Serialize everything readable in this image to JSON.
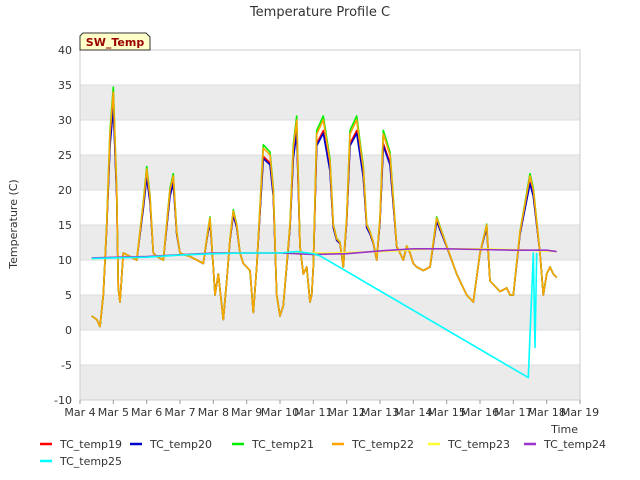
{
  "chart_data": {
    "type": "line",
    "title": "Temperature Profile C",
    "xlabel": "Time",
    "ylabel": "Temperature (C)",
    "xlim": [
      4,
      19
    ],
    "ylim": [
      -10,
      40
    ],
    "x_ticks": [
      {
        "v": 4,
        "label": "Mar 4"
      },
      {
        "v": 5,
        "label": "Mar 5"
      },
      {
        "v": 6,
        "label": "Mar 6"
      },
      {
        "v": 7,
        "label": "Mar 7"
      },
      {
        "v": 8,
        "label": "Mar 8"
      },
      {
        "v": 9,
        "label": "Mar 9"
      },
      {
        "v": 10,
        "label": "Mar 10"
      },
      {
        "v": 11,
        "label": "Mar 11"
      },
      {
        "v": 12,
        "label": "Mar 12"
      },
      {
        "v": 13,
        "label": "Mar 13"
      },
      {
        "v": 14,
        "label": "Mar 14"
      },
      {
        "v": 15,
        "label": "Mar 15"
      },
      {
        "v": 16,
        "label": "Mar 16"
      },
      {
        "v": 17,
        "label": "Mar 17"
      },
      {
        "v": 18,
        "label": "Mar 18"
      },
      {
        "v": 19,
        "label": "Mar 19"
      }
    ],
    "y_ticks": [
      -10,
      -5,
      0,
      5,
      10,
      15,
      20,
      25,
      30,
      35,
      40
    ],
    "grid": "horizontal-bands",
    "legend_position": "bottom",
    "annotation": "SW_Temp",
    "series": [
      {
        "name": "TC_temp19",
        "color": "#ff0000",
        "scale": 0.92,
        "x": [
          4.35,
          4.5,
          4.6,
          4.7,
          4.8,
          4.9,
          5.0,
          5.1,
          5.15,
          5.2,
          5.3,
          5.5,
          5.7,
          5.9,
          6.0,
          6.1,
          6.2,
          6.3,
          6.5,
          6.7,
          6.8,
          6.9,
          7.0,
          7.1,
          7.3,
          7.5,
          7.7,
          7.8,
          7.9,
          8.0,
          8.05,
          8.15,
          8.3,
          8.4,
          8.5,
          8.6,
          8.7,
          8.8,
          8.9,
          9.0,
          9.1,
          9.2,
          9.3,
          9.5,
          9.7,
          9.8,
          9.9,
          10.0,
          10.1,
          10.3,
          10.4,
          10.5,
          10.6,
          10.7,
          10.8,
          10.9,
          10.95,
          11.0,
          11.1,
          11.3,
          11.5,
          11.6,
          11.7,
          11.8,
          11.9,
          12.0,
          12.1,
          12.3,
          12.5,
          12.6,
          12.7,
          12.8,
          12.9,
          13.0,
          13.1,
          13.3,
          13.5,
          13.6,
          13.7,
          13.8,
          13.9,
          14.0,
          14.1,
          14.3,
          14.5,
          14.7,
          15.0,
          15.3,
          15.5,
          15.6,
          15.8,
          16.0,
          16.2,
          16.3,
          16.5,
          16.6,
          16.8,
          16.9,
          17.0,
          17.2,
          17.5,
          17.6,
          17.8,
          17.9,
          18.0,
          18.1,
          18.2,
          18.3
        ],
        "y": [
          2.0,
          1.5,
          0.5,
          5.0,
          15.0,
          28.0,
          34.0,
          20.0,
          6.0,
          4.0,
          11.0,
          10.5,
          10.0,
          18.0,
          23.0,
          19.0,
          11.0,
          10.5,
          10.0,
          20.0,
          22.0,
          14.0,
          11.0,
          10.8,
          10.5,
          10.0,
          9.5,
          13.0,
          16.0,
          9.0,
          5.0,
          8.0,
          1.5,
          7.0,
          13.0,
          17.0,
          15.0,
          11.0,
          9.5,
          9.0,
          8.5,
          2.5,
          9.0,
          26.0,
          25.0,
          20.0,
          5.0,
          2.0,
          3.5,
          15.0,
          26.0,
          30.0,
          12.0,
          8.0,
          9.0,
          4.0,
          5.0,
          9.0,
          28.0,
          30.0,
          24.0,
          15.0,
          13.0,
          12.5,
          9.0,
          16.0,
          28.0,
          30.0,
          23.0,
          15.0,
          14.0,
          12.5,
          10.0,
          16.0,
          28.0,
          25.0,
          12.0,
          11.0,
          10.0,
          12.0,
          11.0,
          9.5,
          9.0,
          8.5,
          9.0,
          16.0,
          12.0,
          8.0,
          6.0,
          5.0,
          4.0,
          11.0,
          15.0,
          7.0,
          6.0,
          5.5,
          6.0,
          5.0,
          5.0,
          14.0,
          22.0,
          20.0,
          11.0,
          5.0,
          8.0,
          9.0,
          8.0,
          7.5
        ]
      },
      {
        "name": "TC_temp20",
        "color": "#0000cc",
        "scale": 0.9,
        "x": [
          4.35,
          4.5,
          4.6,
          4.7,
          4.8,
          4.9,
          5.0,
          5.1,
          5.15,
          5.2,
          5.3,
          5.5,
          5.7,
          5.9,
          6.0,
          6.1,
          6.2,
          6.3,
          6.5,
          6.7,
          6.8,
          6.9,
          7.0,
          7.1,
          7.3,
          7.5,
          7.7,
          7.8,
          7.9,
          8.0,
          8.05,
          8.15,
          8.3,
          8.4,
          8.5,
          8.6,
          8.7,
          8.8,
          8.9,
          9.0,
          9.1,
          9.2,
          9.3,
          9.5,
          9.7,
          9.8,
          9.9,
          10.0,
          10.1,
          10.3,
          10.4,
          10.5,
          10.6,
          10.7,
          10.8,
          10.9,
          10.95,
          11.0,
          11.1,
          11.3,
          11.5,
          11.6,
          11.7,
          11.8,
          11.9,
          12.0,
          12.1,
          12.3,
          12.5,
          12.6,
          12.7,
          12.8,
          12.9,
          13.0,
          13.1,
          13.3,
          13.5,
          13.6,
          13.7,
          13.8,
          13.9,
          14.0,
          14.1,
          14.3,
          14.5,
          14.7,
          15.0,
          15.3,
          15.5,
          15.6,
          15.8,
          16.0,
          16.2,
          16.3,
          16.5,
          16.6,
          16.8,
          16.9,
          17.0,
          17.2,
          17.5,
          17.6,
          17.8,
          17.9,
          18.0,
          18.1,
          18.2,
          18.3
        ],
        "y": [
          2.0,
          1.5,
          0.5,
          5.0,
          15.0,
          28.0,
          34.0,
          20.0,
          6.0,
          4.0,
          11.0,
          10.5,
          10.0,
          18.0,
          23.0,
          19.0,
          11.0,
          10.5,
          10.0,
          20.0,
          22.0,
          14.0,
          11.0,
          10.8,
          10.5,
          10.0,
          9.5,
          13.0,
          16.0,
          9.0,
          5.0,
          8.0,
          1.5,
          7.0,
          13.0,
          17.0,
          15.0,
          11.0,
          9.5,
          9.0,
          8.5,
          2.5,
          9.0,
          26.0,
          25.0,
          20.0,
          5.0,
          2.0,
          3.5,
          15.0,
          26.0,
          30.0,
          12.0,
          8.0,
          9.0,
          4.0,
          5.0,
          9.0,
          28.0,
          30.0,
          24.0,
          15.0,
          13.0,
          12.5,
          9.0,
          16.0,
          28.0,
          30.0,
          23.0,
          15.0,
          14.0,
          12.5,
          10.0,
          16.0,
          28.0,
          25.0,
          12.0,
          11.0,
          10.0,
          12.0,
          11.0,
          9.5,
          9.0,
          8.5,
          9.0,
          16.0,
          12.0,
          8.0,
          6.0,
          5.0,
          4.0,
          11.0,
          15.0,
          7.0,
          6.0,
          5.5,
          6.0,
          5.0,
          5.0,
          14.0,
          22.0,
          20.0,
          11.0,
          5.0,
          8.0,
          9.0,
          8.0,
          7.5
        ]
      },
      {
        "name": "TC_temp21",
        "color": "#00ee00",
        "scale": 1.03,
        "x": [
          4.35,
          4.5,
          4.6,
          4.7,
          4.8,
          4.9,
          5.0,
          5.1,
          5.15,
          5.2,
          5.3,
          5.5,
          5.7,
          5.9,
          6.0,
          6.1,
          6.2,
          6.3,
          6.5,
          6.7,
          6.8,
          6.9,
          7.0,
          7.1,
          7.3,
          7.5,
          7.7,
          7.8,
          7.9,
          8.0,
          8.05,
          8.15,
          8.3,
          8.4,
          8.5,
          8.6,
          8.7,
          8.8,
          8.9,
          9.0,
          9.1,
          9.2,
          9.3,
          9.5,
          9.7,
          9.8,
          9.9,
          10.0,
          10.1,
          10.3,
          10.4,
          10.5,
          10.6,
          10.7,
          10.8,
          10.9,
          10.95,
          11.0,
          11.1,
          11.3,
          11.5,
          11.6,
          11.7,
          11.8,
          11.9,
          12.0,
          12.1,
          12.3,
          12.5,
          12.6,
          12.7,
          12.8,
          12.9,
          13.0,
          13.1,
          13.3,
          13.5,
          13.6,
          13.7,
          13.8,
          13.9,
          14.0,
          14.1,
          14.3,
          14.5,
          14.7,
          15.0,
          15.3,
          15.5,
          15.6,
          15.8,
          16.0,
          16.2,
          16.3,
          16.5,
          16.6,
          16.8,
          16.9,
          17.0,
          17.2,
          17.5,
          17.6,
          17.8,
          17.9,
          18.0,
          18.1,
          18.2,
          18.3
        ],
        "y": [
          2.0,
          1.5,
          0.5,
          5.0,
          15.0,
          28.0,
          34.0,
          20.0,
          6.0,
          4.0,
          11.0,
          10.5,
          10.0,
          18.0,
          23.0,
          19.0,
          11.0,
          10.5,
          10.0,
          20.0,
          22.0,
          14.0,
          11.0,
          10.8,
          10.5,
          10.0,
          9.5,
          13.0,
          16.0,
          9.0,
          5.0,
          8.0,
          1.5,
          7.0,
          13.0,
          17.0,
          15.0,
          11.0,
          9.5,
          9.0,
          8.5,
          2.5,
          9.0,
          26.0,
          25.0,
          20.0,
          5.0,
          2.0,
          3.5,
          15.0,
          26.0,
          30.0,
          12.0,
          8.0,
          9.0,
          4.0,
          5.0,
          9.0,
          28.0,
          30.0,
          24.0,
          15.0,
          13.0,
          12.5,
          9.0,
          16.0,
          28.0,
          30.0,
          23.0,
          15.0,
          14.0,
          12.5,
          10.0,
          16.0,
          28.0,
          25.0,
          12.0,
          11.0,
          10.0,
          12.0,
          11.0,
          9.5,
          9.0,
          8.5,
          9.0,
          16.0,
          12.0,
          8.0,
          6.0,
          5.0,
          4.0,
          11.0,
          15.0,
          7.0,
          6.0,
          5.5,
          6.0,
          5.0,
          5.0,
          14.0,
          22.0,
          20.0,
          11.0,
          5.0,
          8.0,
          9.0,
          8.0,
          7.5
        ]
      },
      {
        "name": "TC_temp22",
        "color": "#ffa500",
        "scale": 1.0,
        "x": [
          4.35,
          4.5,
          4.6,
          4.7,
          4.8,
          4.9,
          5.0,
          5.1,
          5.15,
          5.2,
          5.3,
          5.5,
          5.7,
          5.9,
          6.0,
          6.1,
          6.2,
          6.3,
          6.5,
          6.7,
          6.8,
          6.9,
          7.0,
          7.1,
          7.3,
          7.5,
          7.7,
          7.8,
          7.9,
          8.0,
          8.05,
          8.15,
          8.3,
          8.4,
          8.5,
          8.6,
          8.7,
          8.8,
          8.9,
          9.0,
          9.1,
          9.2,
          9.3,
          9.5,
          9.7,
          9.8,
          9.9,
          10.0,
          10.1,
          10.3,
          10.4,
          10.5,
          10.6,
          10.7,
          10.8,
          10.9,
          10.95,
          11.0,
          11.1,
          11.3,
          11.5,
          11.6,
          11.7,
          11.8,
          11.9,
          12.0,
          12.1,
          12.3,
          12.5,
          12.6,
          12.7,
          12.8,
          12.9,
          13.0,
          13.1,
          13.3,
          13.5,
          13.6,
          13.7,
          13.8,
          13.9,
          14.0,
          14.1,
          14.3,
          14.5,
          14.7,
          15.0,
          15.3,
          15.5,
          15.6,
          15.8,
          16.0,
          16.2,
          16.3,
          16.5,
          16.6,
          16.8,
          16.9,
          17.0,
          17.2,
          17.5,
          17.6,
          17.8,
          17.9,
          18.0,
          18.1,
          18.2,
          18.3
        ],
        "y": [
          2.0,
          1.5,
          0.5,
          5.0,
          15.0,
          28.0,
          34.0,
          20.0,
          6.0,
          4.0,
          11.0,
          10.5,
          10.0,
          18.0,
          23.0,
          19.0,
          11.0,
          10.5,
          10.0,
          20.0,
          22.0,
          14.0,
          11.0,
          10.8,
          10.5,
          10.0,
          9.5,
          13.0,
          16.0,
          9.0,
          5.0,
          8.0,
          1.5,
          7.0,
          13.0,
          17.0,
          15.0,
          11.0,
          9.5,
          9.0,
          8.5,
          2.5,
          9.0,
          26.0,
          25.0,
          20.0,
          5.0,
          2.0,
          3.5,
          15.0,
          26.0,
          30.0,
          12.0,
          8.0,
          9.0,
          4.0,
          5.0,
          9.0,
          28.0,
          30.0,
          24.0,
          15.0,
          13.0,
          12.5,
          9.0,
          16.0,
          28.0,
          30.0,
          23.0,
          15.0,
          14.0,
          12.5,
          10.0,
          16.0,
          28.0,
          25.0,
          12.0,
          11.0,
          10.0,
          12.0,
          11.0,
          9.5,
          9.0,
          8.5,
          9.0,
          16.0,
          12.0,
          8.0,
          6.0,
          5.0,
          4.0,
          11.0,
          15.0,
          7.0,
          6.0,
          5.5,
          6.0,
          5.0,
          5.0,
          14.0,
          22.0,
          20.0,
          11.0,
          5.0,
          8.0,
          9.0,
          8.0,
          7.5
        ]
      },
      {
        "name": "TC_temp23",
        "color": "#ffff33",
        "scale": 1.0,
        "x": [
          4.35,
          6.0,
          8.0,
          10.0,
          11.5,
          13.0,
          14.5,
          16.0,
          17.5,
          18.3
        ],
        "y": [
          10.2,
          10.5,
          11.0,
          11.0,
          11.0,
          11.2,
          11.6,
          11.6,
          11.4,
          11.2
        ]
      },
      {
        "name": "TC_temp24",
        "color": "#9933cc",
        "scale": 1.0,
        "x": [
          4.35,
          6.0,
          8.0,
          10.0,
          11.0,
          12.0,
          13.0,
          14.0,
          15.0,
          16.0,
          17.0,
          18.0,
          18.3
        ],
        "y": [
          10.3,
          10.5,
          11.0,
          11.0,
          10.8,
          10.9,
          11.3,
          11.6,
          11.6,
          11.5,
          11.4,
          11.4,
          11.2
        ]
      },
      {
        "name": "TC_temp25",
        "color": "#00ffff",
        "scale": 1.0,
        "x": [
          4.35,
          5.0,
          6.0,
          7.0,
          8.0,
          9.0,
          10.0,
          10.5,
          11.0,
          11.2,
          17.45,
          17.6,
          17.65,
          17.7
        ],
        "y": [
          10.2,
          10.3,
          10.4,
          10.7,
          10.9,
          11.0,
          11.0,
          11.2,
          10.9,
          10.6,
          -6.8,
          11.0,
          -2.5,
          11.0
        ]
      }
    ]
  }
}
